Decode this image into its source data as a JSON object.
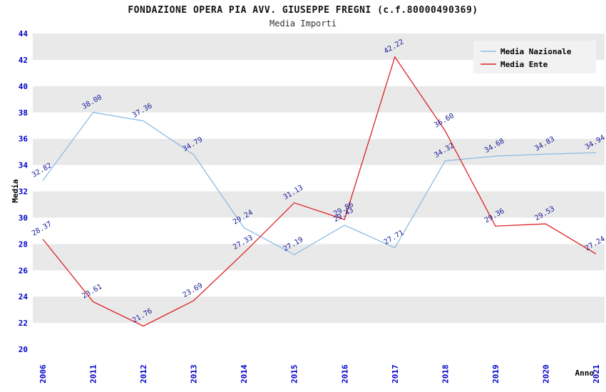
{
  "header": {
    "title": "FONDAZIONE OPERA PIA AVV. GIUSEPPE FREGNI (c.f.80000490369)",
    "subtitle": "Media Importi"
  },
  "chart_data": {
    "type": "line",
    "title": "FONDAZIONE OPERA PIA AVV. GIUSEPPE FREGNI (c.f.80000490369)",
    "subtitle": "Media Importi",
    "xlabel": "Anno",
    "ylabel": "Media",
    "ylim": [
      20,
      44
    ],
    "ytick_step": 2,
    "grid": "alternating-horizontal-bands",
    "legend_position": "top-right",
    "categories": [
      "2006",
      "2011",
      "2012",
      "2013",
      "2014",
      "2015",
      "2016",
      "2017",
      "2018",
      "2019",
      "2020",
      "2021"
    ],
    "series": [
      {
        "name": "Media Nazionale",
        "color": "#8cbbe2",
        "values": [
          32.82,
          38.0,
          37.36,
          34.79,
          29.24,
          27.19,
          29.43,
          27.71,
          34.32,
          34.68,
          34.83,
          34.94
        ]
      },
      {
        "name": "Media Ente",
        "color": "#dd2222",
        "values": [
          28.37,
          23.61,
          21.76,
          23.69,
          27.33,
          31.13,
          29.86,
          42.22,
          36.6,
          29.36,
          29.53,
          27.24
        ]
      }
    ],
    "colors": {
      "tick_labels": "#0000cc",
      "point_labels": "#1a1a99",
      "band_gray": "#e9e9e9",
      "legend_bg": "#f2f2f2"
    }
  }
}
